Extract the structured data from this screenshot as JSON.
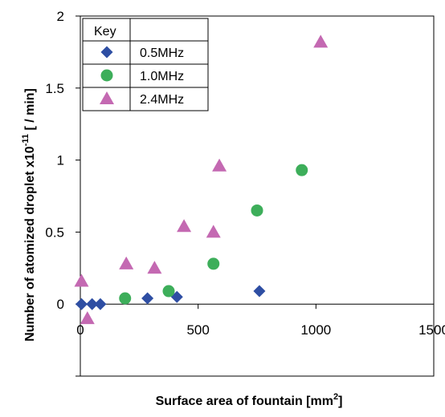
{
  "chart_data": {
    "type": "scatter",
    "xlabel": "Surface area of fountain [mm",
    "xlabel_sup": "2",
    "xlabel_end": "]",
    "ylabel": "Number  of atomized droplet x10",
    "ylabel_sup": "-11",
    "ylabel_end": " [ / min]",
    "xlim": [
      0,
      1500
    ],
    "ylim": [
      -0.5,
      2
    ],
    "xticks": [
      "0",
      "500",
      "1000",
      "1500"
    ],
    "yticks": [
      "0",
      "0.5",
      "1",
      "1.5",
      "2"
    ],
    "grid": false,
    "legend": {
      "title": "Key",
      "position": "top-left"
    },
    "series": [
      {
        "name": "0.5MHz",
        "marker": "diamond",
        "color": "#2E4EA3",
        "points": [
          [
            5,
            0.0
          ],
          [
            50,
            0.0
          ],
          [
            85,
            0.0
          ],
          [
            285,
            0.04
          ],
          [
            410,
            0.05
          ],
          [
            760,
            0.09
          ]
        ]
      },
      {
        "name": "1.0MHz",
        "marker": "circle",
        "color": "#3DAE5A",
        "points": [
          [
            190,
            0.04
          ],
          [
            375,
            0.09
          ],
          [
            565,
            0.28
          ],
          [
            750,
            0.65
          ],
          [
            940,
            0.93
          ]
        ]
      },
      {
        "name": "2.4MHz",
        "marker": "triangle",
        "color": "#C469B2",
        "points": [
          [
            5,
            0.16
          ],
          [
            30,
            -0.1
          ],
          [
            195,
            0.28
          ],
          [
            315,
            0.25
          ],
          [
            440,
            0.54
          ],
          [
            565,
            0.5
          ],
          [
            590,
            0.96
          ],
          [
            1020,
            1.82
          ]
        ]
      }
    ]
  }
}
